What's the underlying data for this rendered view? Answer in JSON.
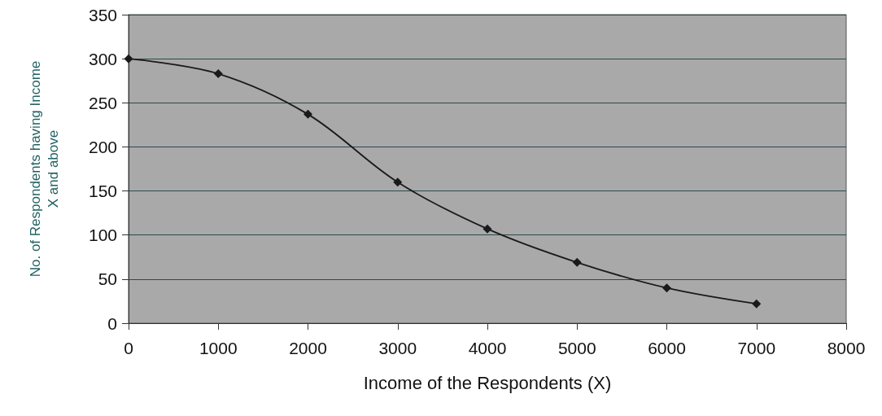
{
  "chart_data": {
    "type": "line",
    "xlabel": "Income of the Respondents (X)",
    "ylabel": "No. of Respondents having Income\nX and above",
    "x": [
      0,
      1000,
      2000,
      3000,
      4000,
      5000,
      6000,
      7000
    ],
    "series": [
      {
        "color": "#1a1a1a",
        "values": [
          300,
          283,
          237,
          160,
          107,
          69,
          40,
          22
        ]
      }
    ],
    "xlim": [
      0,
      8000
    ],
    "xticks": [
      0,
      1000,
      2000,
      3000,
      4000,
      5000,
      6000,
      7000,
      8000
    ],
    "ylim": [
      0,
      350
    ],
    "yticks": [
      0,
      50,
      100,
      150,
      200,
      250,
      300,
      350
    ],
    "grid": "y",
    "marker": "diamond",
    "line_style": "solid"
  }
}
